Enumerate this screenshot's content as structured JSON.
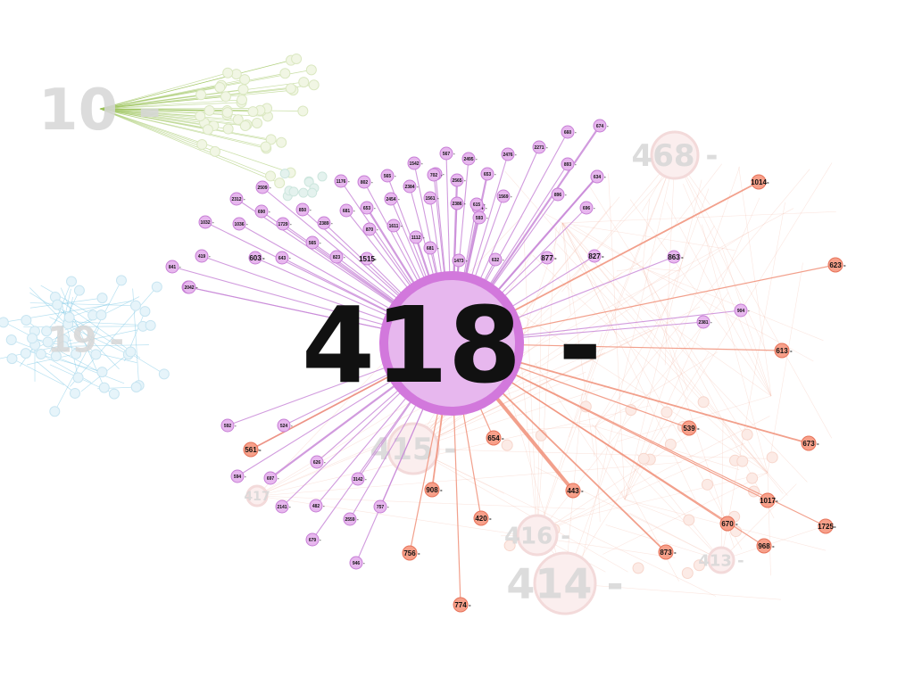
{
  "colors": {
    "purple_fill": "#e7b7ee",
    "purple_stroke": "#c77fd6",
    "purple_edge": "#c98ad8",
    "orange_fill": "#f7a08a",
    "orange_stroke": "#e7735a",
    "orange_edge": "#f08f78",
    "green_faded": "#9bc25a",
    "blue_faded": "#7ec8e6",
    "ghost_label": "#d9d9d9",
    "label_dark": "#111111"
  },
  "graph": {
    "focus_node": {
      "label": "418 -"
    },
    "ghost_clusters": [
      {
        "id": "c10",
        "label": "10 -",
        "color": "green"
      },
      {
        "id": "c19",
        "label": "19 -",
        "color": "blue"
      },
      {
        "id": "c468",
        "label": "468 -",
        "color": "pink"
      },
      {
        "id": "c415",
        "label": "415 -",
        "color": "pink"
      },
      {
        "id": "c416",
        "label": "416 -",
        "color": "pink"
      },
      {
        "id": "c414",
        "label": "414 -",
        "color": "pink"
      },
      {
        "id": "c417",
        "label": "417",
        "color": "pink"
      },
      {
        "id": "c413",
        "label": "413 -",
        "color": "pink"
      }
    ],
    "purple_neighbors": [
      "674",
      "696",
      "567",
      "1542",
      "2271",
      "2476",
      "660",
      "680",
      "2495",
      "2565",
      "1569",
      "634",
      "1176",
      "802",
      "2509",
      "2384",
      "702",
      "1561",
      "653",
      "893",
      "565",
      "2386",
      "2312",
      "2454",
      "896",
      "2484",
      "1611",
      "653",
      "681",
      "1032",
      "1036",
      "690",
      "1729",
      "870",
      "2389",
      "2042",
      "1112",
      "593",
      "615",
      "565",
      "850",
      "823",
      "1515",
      "681",
      "643",
      "1473",
      "632",
      "419",
      "603",
      "877",
      "827",
      "863",
      "841",
      "2042",
      "634",
      "904",
      "2381",
      "592",
      "524",
      "561",
      "594",
      "626",
      "3142",
      "697",
      "2141",
      "482",
      "757",
      "2559",
      "679",
      "946"
    ],
    "orange_neighbors": [
      "1014",
      "623",
      "613",
      "539",
      "673",
      "1017",
      "1725",
      "654",
      "908",
      "443",
      "420",
      "756",
      "873",
      "968",
      "670",
      "774",
      "561"
    ]
  }
}
